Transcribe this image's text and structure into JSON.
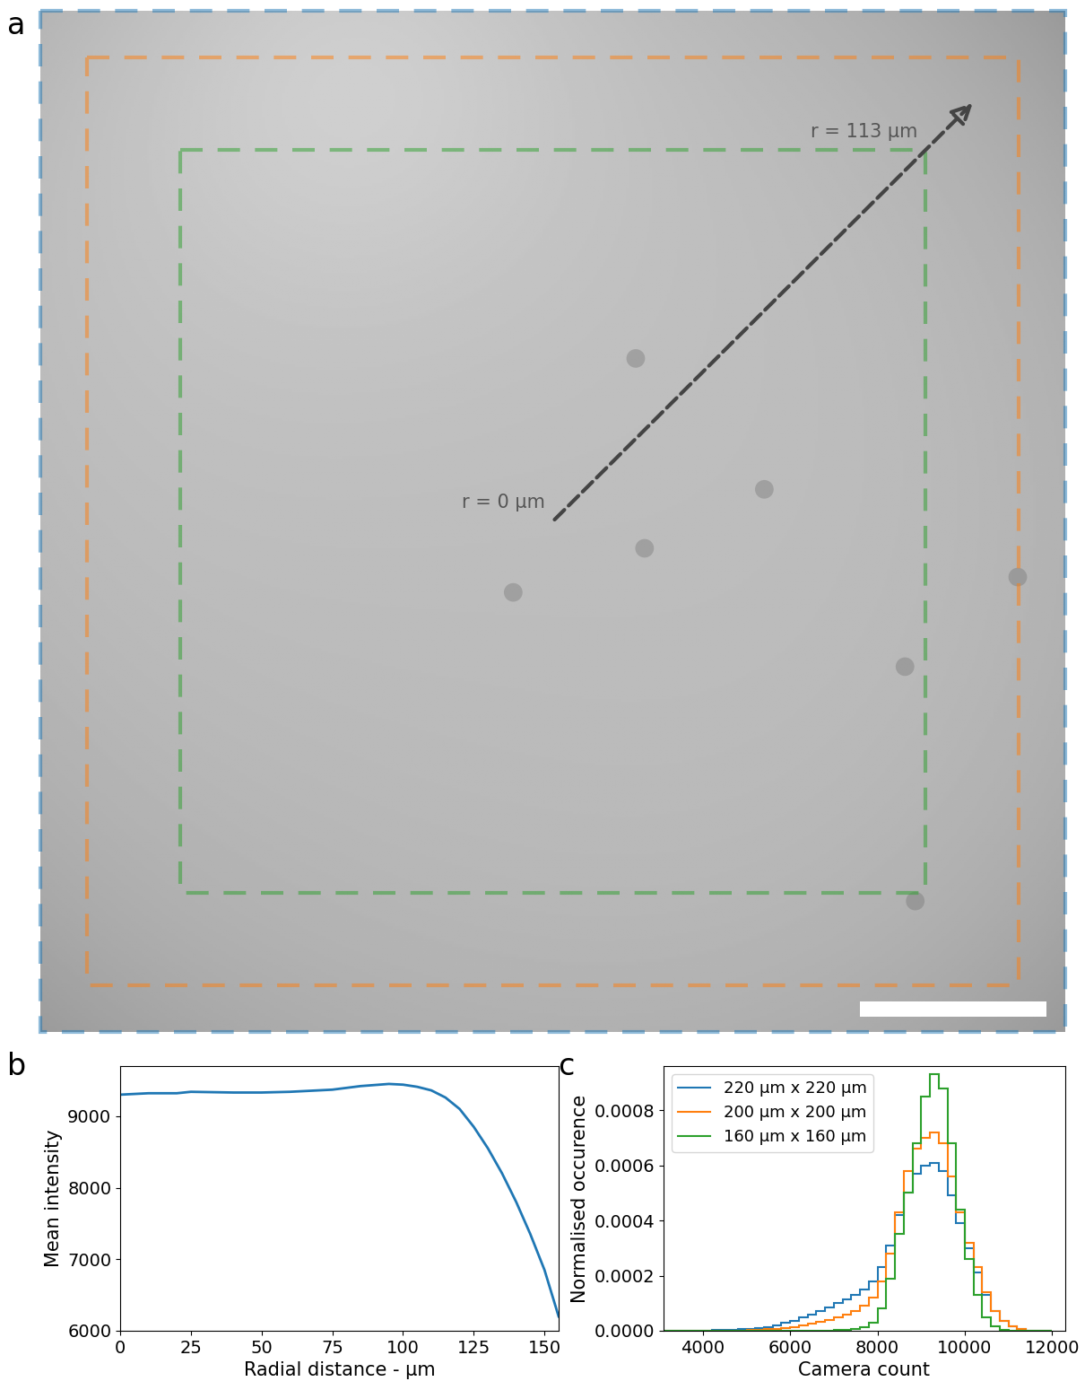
{
  "chart_data": [
    {
      "type": "image",
      "label": "a",
      "xlim": [
        0,
        220
      ],
      "ylim": [
        220,
        0
      ],
      "squares": [
        {
          "size": 220,
          "color": "#1f77b4"
        },
        {
          "size": 200,
          "color": "#ff7f0e"
        },
        {
          "size": 160,
          "color": "#2ca02c"
        }
      ],
      "annotations": [
        {
          "text": "r = 0 µm",
          "r": 0
        },
        {
          "text": "r = 113 µm",
          "r": 113
        }
      ],
      "arrow_end_r": 128,
      "scale_bar": 40,
      "particles": [
        [
          127.8,
          74.9
        ],
        [
          155.4,
          103.1
        ],
        [
          129.7,
          115.8
        ],
        [
          101.5,
          125.3
        ],
        [
          185.6,
          141.3
        ],
        [
          209.8,
          122.0
        ],
        [
          187.8,
          191.8
        ]
      ]
    },
    {
      "type": "line",
      "label": "b",
      "x_label": "Radial distance - µm",
      "y_label": "Mean intensity",
      "x": [
        0,
        10,
        20,
        25,
        40,
        50,
        60,
        75,
        85,
        95,
        100,
        105,
        110,
        115,
        120,
        125,
        130,
        135,
        140,
        145,
        150,
        155
      ],
      "values": [
        9300,
        9320,
        9320,
        9340,
        9330,
        9330,
        9340,
        9370,
        9420,
        9450,
        9440,
        9410,
        9360,
        9260,
        9100,
        8850,
        8550,
        8200,
        7800,
        7350,
        6850,
        6200
      ],
      "color": "#1f77b4",
      "xlim": [
        0,
        155
      ],
      "ylim": [
        6000,
        9700
      ],
      "xticks": [
        0,
        25,
        50,
        75,
        100,
        125,
        150
      ],
      "yticks": [
        6000,
        7000,
        8000,
        9000
      ]
    },
    {
      "type": "histogram",
      "label": "c",
      "x_label": "Camera count",
      "y_label": "Normalised occurence",
      "bins": [
        3000,
        3200,
        3400,
        3600,
        3800,
        4000,
        4200,
        4400,
        4600,
        4800,
        5000,
        5200,
        5400,
        5600,
        5800,
        6000,
        6200,
        6400,
        6600,
        6800,
        7000,
        7200,
        7400,
        7600,
        7800,
        8000,
        8200,
        8400,
        8600,
        8800,
        9000,
        9200,
        9400,
        9600,
        9800,
        10000,
        10200,
        10400,
        10600,
        10800,
        11000,
        11200,
        11400,
        11600,
        11800,
        12000
      ],
      "series": [
        {
          "name": "220 µm x 220 µm",
          "color": "#1f77b4",
          "values": [
            0,
            0,
            0,
            0,
            1e-06,
            1e-06,
            2e-06,
            3e-06,
            4e-06,
            5e-06,
            7e-06,
            1e-05,
            1.4e-05,
            2e-05,
            2.8e-05,
            3.7e-05,
            4.8e-05,
            6e-05,
            7.2e-05,
            8.5e-05,
            0.0001,
            0.000115,
            0.00013,
            0.00015,
            0.00018,
            0.00023,
            0.00031,
            0.00042,
            0.0005,
            0.00057,
            0.0006,
            0.00061,
            0.00058,
            0.00049,
            0.00039,
            0.0003,
            0.00021,
            0.00013,
            7e-05,
            3.5e-05,
            1.5e-05,
            5e-06,
            1e-06,
            0,
            0
          ]
        },
        {
          "name": "200 µm x 200 µm",
          "color": "#ff7f0e",
          "values": [
            0,
            0,
            0,
            0,
            0,
            0,
            0,
            0,
            0,
            1e-06,
            2e-06,
            3e-06,
            5e-06,
            7e-06,
            1e-05,
            1.4e-05,
            1.9e-05,
            2.5e-05,
            3.2e-05,
            4e-05,
            5e-05,
            6e-05,
            7e-05,
            9e-05,
            0.00012,
            0.00018,
            0.00028,
            0.00043,
            0.00058,
            0.00066,
            0.0007,
            0.00072,
            0.00068,
            0.00056,
            0.00043,
            0.00032,
            0.00023,
            0.00014,
            7e-05,
            3.5e-05,
            1.5e-05,
            5e-06,
            1e-06,
            0,
            0
          ]
        },
        {
          "name": "160 µm x 160 µm",
          "color": "#2ca02c",
          "values": [
            0,
            0,
            0,
            0,
            0,
            0,
            0,
            0,
            0,
            0,
            0,
            0,
            0,
            0,
            0,
            0,
            0,
            0,
            0,
            1e-06,
            2e-06,
            4e-06,
            7e-06,
            1.2e-05,
            3e-05,
            8e-05,
            0.00019,
            0.00035,
            0.0005,
            0.00068,
            0.00085,
            0.00093,
            0.00088,
            0.00068,
            0.00044,
            0.00026,
            0.00013,
            5e-05,
            1.5e-05,
            4e-06,
            1e-06,
            0,
            0,
            0,
            0
          ]
        }
      ],
      "legend": "upper left",
      "xlim": [
        3100,
        12300
      ],
      "ylim": [
        0,
        0.00096
      ],
      "xticks": [
        4000,
        6000,
        8000,
        10000,
        12000
      ],
      "yticks": [
        {
          "value": 0,
          "label": "0.0000"
        },
        {
          "value": 0.0002,
          "label": "0.0002"
        },
        {
          "value": 0.0004,
          "label": "0.0004"
        },
        {
          "value": 0.0006,
          "label": "0.0006"
        },
        {
          "value": 0.0008,
          "label": "0.0008"
        }
      ]
    }
  ]
}
